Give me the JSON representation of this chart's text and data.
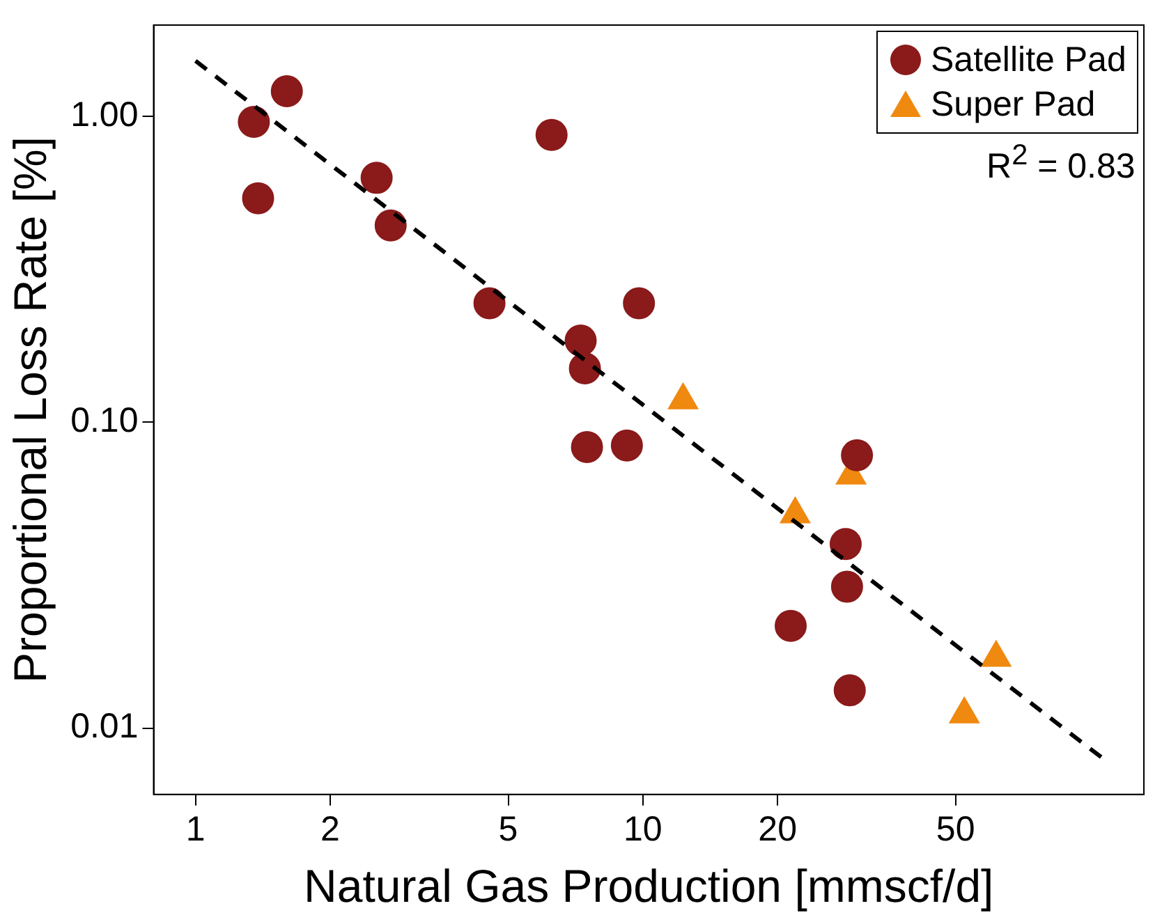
{
  "chart_data": {
    "type": "scatter",
    "xlabel": "Natural Gas Production [mmscf/d]",
    "ylabel": "Proportional Loss Rate [%]",
    "log": "xy",
    "grid": false,
    "legend": "top right",
    "xlim": [
      0.806,
      131.8
    ],
    "ylim": [
      0.00607,
      1.99
    ],
    "xticks": [
      1,
      2,
      5,
      10,
      20,
      50
    ],
    "yticks": [
      {
        "value": 0.01,
        "label": "0.01"
      },
      {
        "value": 0.1,
        "label": "0.10"
      },
      {
        "value": 1,
        "label": "1.00"
      }
    ],
    "annotations": [
      "R$^{2}$ = 0.83"
    ],
    "series": [
      {
        "name": "Satellite Pad",
        "marker": "circle",
        "color": "#8b1a1a",
        "x": [
          1.35,
          1.6,
          1.38,
          2.54,
          2.73,
          6.25,
          4.54,
          7.26,
          7.42,
          9.8,
          7.5,
          9.21,
          30.1,
          28.4,
          28.6,
          21.4,
          29.0
        ],
        "values": [
          0.96,
          1.21,
          0.54,
          0.63,
          0.44,
          0.87,
          0.245,
          0.185,
          0.15,
          0.245,
          0.083,
          0.084,
          0.078,
          0.04,
          0.029,
          0.0216,
          0.0133
        ]
      },
      {
        "name": "Super Pad",
        "marker": "triangle",
        "color": "#f0890f",
        "x": [
          12.3,
          21.9,
          29.2,
          61.6,
          52.3
        ],
        "values": [
          0.118,
          0.05,
          0.067,
          0.017,
          0.0111
        ]
      },
      {
        "type": "line",
        "marker": "none",
        "line_style": "dashed",
        "color": "#000000",
        "x": [
          1,
          107.8
        ],
        "values": [
          1.52,
          0.00787
        ]
      }
    ]
  }
}
